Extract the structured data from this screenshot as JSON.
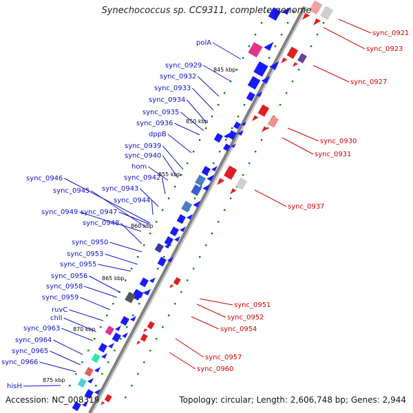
{
  "title": "Synechococcus sp. CC9311, complete genome",
  "footer": {
    "accession": "Accession: NC_008319",
    "topology": "Topology: circular; Length: 2,606,748 bp; Genes: 2,944"
  },
  "colors": {
    "forward_label": "#1010c8",
    "reverse_label": "#d00000",
    "backbone": "#7f7f7f",
    "tick": "#008000"
  },
  "kbp_ticks": [
    "845 kbp",
    "850 kbp",
    "855 kbp",
    "860 kbp",
    "865 kbp",
    "870 kbp",
    "875 kbp"
  ],
  "forward_genes": [
    {
      "name": "polA"
    },
    {
      "name": "sync_0929"
    },
    {
      "name": "sync_0932"
    },
    {
      "name": "sync_0933"
    },
    {
      "name": "sync_0934"
    },
    {
      "name": "sync_0935"
    },
    {
      "name": "sync_0936"
    },
    {
      "name": "dppB"
    },
    {
      "name": "sync_0939"
    },
    {
      "name": "sync_0940"
    },
    {
      "name": "hom"
    },
    {
      "name": "sync_0942"
    },
    {
      "name": "sync_0943"
    },
    {
      "name": "sync_0944"
    },
    {
      "name": "sync_0946"
    },
    {
      "name": "sync_0945"
    },
    {
      "name": "sync_0949"
    },
    {
      "name": "sync_0947"
    },
    {
      "name": "sync_0948"
    },
    {
      "name": "sync_0950"
    },
    {
      "name": "sync_0953"
    },
    {
      "name": "sync_0955"
    },
    {
      "name": "sync_0956"
    },
    {
      "name": "sync_0958"
    },
    {
      "name": "sync_0959"
    },
    {
      "name": "ruvC"
    },
    {
      "name": "chlI"
    },
    {
      "name": "sync_0963"
    },
    {
      "name": "sync_0964"
    },
    {
      "name": "sync_0965"
    },
    {
      "name": "sync_0966"
    },
    {
      "name": "hisH"
    }
  ],
  "reverse_genes": [
    {
      "name": "sync_0921"
    },
    {
      "name": "sync_0923"
    },
    {
      "name": "sync_0927"
    },
    {
      "name": "sync_0930"
    },
    {
      "name": "sync_0931"
    },
    {
      "name": "sync_0937"
    },
    {
      "name": "sync_0951"
    },
    {
      "name": "sync_0952"
    },
    {
      "name": "sync_0954"
    },
    {
      "name": "sync_0957"
    },
    {
      "name": "sync_0960"
    }
  ]
}
